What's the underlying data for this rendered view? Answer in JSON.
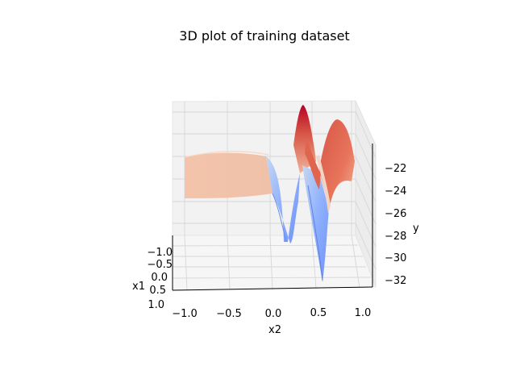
{
  "chart_data": {
    "type": "surface",
    "title": "3D plot of training dataset",
    "colormap": "coolwarm",
    "axes": {
      "x1": {
        "label": "x1",
        "ticks": [
          "−1.0",
          "−0.5",
          "0.0",
          "0.5",
          "1.0"
        ],
        "range": [
          -1.0,
          1.0
        ]
      },
      "x2": {
        "label": "x2",
        "ticks": [
          "−1.0",
          "−0.5",
          "0.0",
          "0.5",
          "1.0"
        ],
        "range": [
          -1.0,
          1.0
        ]
      },
      "y": {
        "label": "y",
        "ticks": [
          "−22",
          "−24",
          "−26",
          "−28",
          "−30",
          "−32"
        ],
        "range": [
          -33,
          -21
        ]
      }
    },
    "grid": true
  }
}
